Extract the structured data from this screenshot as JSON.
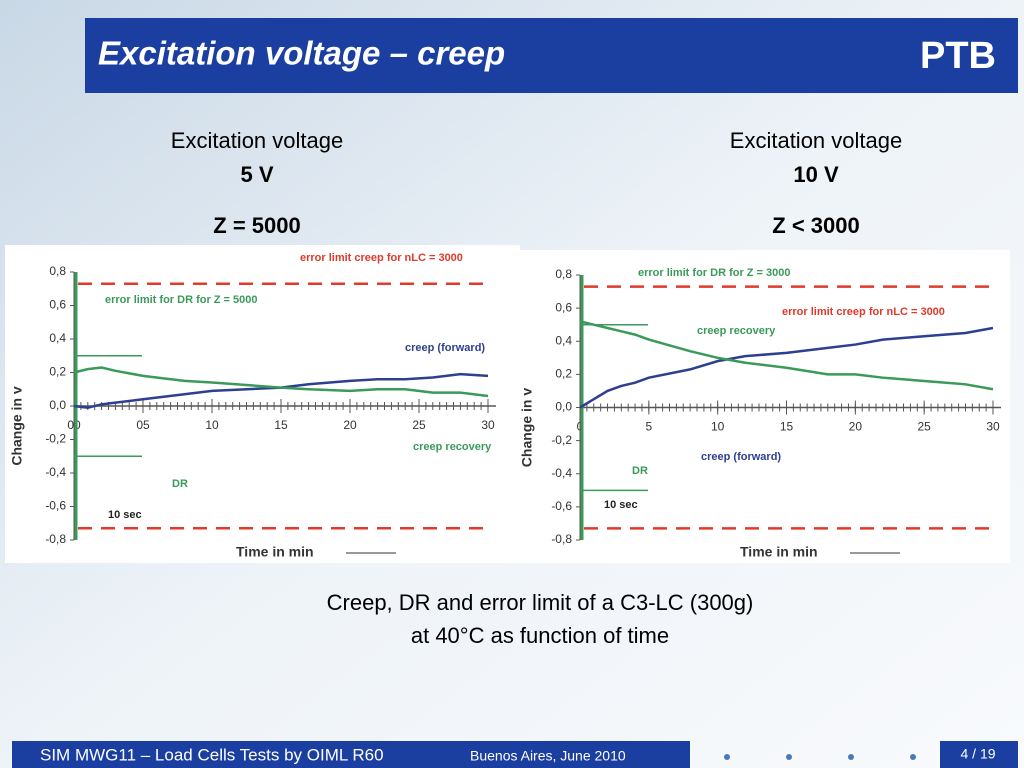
{
  "header": {
    "title": "Excitation voltage – creep",
    "logo": "PTB"
  },
  "columns": [
    {
      "line1": "Excitation voltage",
      "line2": "5 V",
      "line3": "Z = 5000"
    },
    {
      "line1": "Excitation voltage",
      "line2": "10 V",
      "line3": "Z < 3000"
    }
  ],
  "chart_data": [
    {
      "type": "line",
      "ylabel": "Change in  v",
      "xlabel": "Time in min",
      "x": [
        0,
        1,
        2,
        3,
        5,
        8,
        10,
        15,
        17,
        20,
        22,
        24,
        26,
        28,
        30
      ],
      "series": [
        {
          "name": "creep (forward)",
          "color": "#2e3f8f",
          "values": [
            0,
            -0.01,
            0.01,
            0.02,
            0.04,
            0.07,
            0.09,
            0.11,
            0.13,
            0.15,
            0.16,
            0.16,
            0.17,
            0.19,
            0.18
          ]
        },
        {
          "name": "creep recovery",
          "color": "#3a9a5a",
          "values": [
            0.2,
            0.22,
            0.23,
            0.21,
            0.18,
            0.15,
            0.14,
            0.11,
            0.1,
            0.09,
            0.1,
            0.1,
            0.08,
            0.08,
            0.06
          ]
        }
      ],
      "error_limit": [
        0.73,
        -0.73
      ],
      "error_color": "#e03a2a",
      "dr_limit": [
        0.3,
        -0.3
      ],
      "dr_color": "#3a9a5a",
      "xlim": [
        0,
        30
      ],
      "xticks": [
        {
          "value": 0,
          "label": "00"
        },
        {
          "value": 5,
          "label": "05"
        },
        10,
        15,
        20,
        25,
        30
      ],
      "ylim": [
        -0.8,
        0.8
      ],
      "yticks": [
        {
          "value": 0.8,
          "label": "0,8"
        },
        {
          "value": 0.6,
          "label": "0,6"
        },
        {
          "value": 0.4,
          "label": "0,4"
        },
        {
          "value": 0.2,
          "label": "0,2"
        },
        {
          "value": 0,
          "label": "0,0"
        },
        {
          "value": -0.2,
          "label": "-0,2"
        },
        {
          "value": -0.4,
          "label": "-0,4"
        },
        {
          "value": -0.6,
          "label": "-0,6"
        },
        {
          "value": -0.8,
          "label": "-0,8"
        }
      ],
      "annotations": [
        "error limit creep for  nLC  =  3000",
        "error limit for DR for  Z  =  5000",
        "creep (forward)",
        "creep recovery",
        "DR",
        "10 sec"
      ]
    },
    {
      "type": "line",
      "ylabel": "Change in  v",
      "xlabel": "Time in  min",
      "x": [
        0,
        1,
        2,
        3,
        4,
        5,
        8,
        10,
        12,
        15,
        18,
        20,
        22,
        25,
        28,
        30
      ],
      "series": [
        {
          "name": "creep (forward)",
          "color": "#2e3f8f",
          "values": [
            0,
            0.05,
            0.1,
            0.13,
            0.15,
            0.18,
            0.23,
            0.28,
            0.31,
            0.33,
            0.36,
            0.38,
            0.41,
            0.43,
            0.45,
            0.48
          ]
        },
        {
          "name": "creep recovery",
          "color": "#3a9a5a",
          "values": [
            0.52,
            0.5,
            0.48,
            0.46,
            0.44,
            0.41,
            0.34,
            0.3,
            0.27,
            0.24,
            0.2,
            0.2,
            0.18,
            0.16,
            0.14,
            0.11
          ]
        }
      ],
      "error_limit": [
        0.73,
        -0.73
      ],
      "error_color": "#e03a2a",
      "dr_limit": [
        0.5,
        -0.5
      ],
      "dr_color": "#3a9a5a",
      "xlim": [
        0,
        30
      ],
      "xticks": [
        0,
        5,
        10,
        15,
        20,
        25,
        30
      ],
      "ylim": [
        -0.8,
        0.8
      ],
      "yticks": [
        {
          "value": 0.8,
          "label": "0,8"
        },
        {
          "value": 0.6,
          "label": "0,6"
        },
        {
          "value": 0.4,
          "label": "0,4"
        },
        {
          "value": 0.2,
          "label": "0,2"
        },
        {
          "value": 0,
          "label": "0,0"
        },
        {
          "value": -0.2,
          "label": "-0,2"
        },
        {
          "value": -0.4,
          "label": "-0,4"
        },
        {
          "value": -0.6,
          "label": "-0,6"
        },
        {
          "value": -0.8,
          "label": "-0,8"
        }
      ],
      "annotations": [
        "error limit for DR for  Z  =  3000",
        "error limit creep for  nLC  =  3000",
        "creep recovery",
        "creep (forward)",
        "DR",
        "10 sec"
      ]
    }
  ],
  "caption": {
    "line1": "Creep, DR and error limit of a C3-LC (300g)",
    "line2": "at 40°C as function of time"
  },
  "footer": {
    "left": "SIM MWG11 – Load Cells Tests by OIML R60",
    "place": "Buenos Aires, June 2010",
    "page": "4 / 19"
  }
}
